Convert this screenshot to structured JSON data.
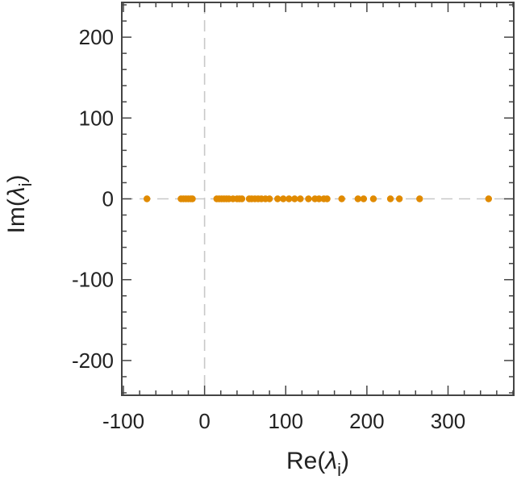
{
  "chart_data": {
    "type": "scatter",
    "title": "",
    "xlabel": {
      "main": "Re(",
      "symbol": "λ",
      "sub": "i",
      "close": ")"
    },
    "ylabel": {
      "main": "Im(",
      "symbol": "λ",
      "sub": "i",
      "close": ")"
    },
    "xlim": [
      -102,
      381
    ],
    "ylim": [
      -243,
      243
    ],
    "x_ticks": [
      -100,
      0,
      100,
      200,
      300
    ],
    "y_ticks": [
      -200,
      -100,
      0,
      100,
      200
    ],
    "x_tick_labels": [
      "-100",
      "0",
      "100",
      "200",
      "300"
    ],
    "y_tick_labels": [
      "-200",
      "-100",
      "0",
      "100",
      "200"
    ],
    "grid": false,
    "reference_lines": {
      "x_zero_dashed": true,
      "y_zero_dashed": true,
      "color": "#c8c8c8"
    },
    "series": [
      {
        "color": "#e08a00",
        "points": [
          {
            "x": -71,
            "y": 0
          },
          {
            "x": -29,
            "y": 0
          },
          {
            "x": -26,
            "y": 0
          },
          {
            "x": -23,
            "y": 0
          },
          {
            "x": -20,
            "y": 0
          },
          {
            "x": -17,
            "y": 0
          },
          {
            "x": -15,
            "y": 0
          },
          {
            "x": 15,
            "y": 0
          },
          {
            "x": 18,
            "y": 0
          },
          {
            "x": 21,
            "y": 0
          },
          {
            "x": 24,
            "y": 0
          },
          {
            "x": 27,
            "y": 0
          },
          {
            "x": 30,
            "y": 0
          },
          {
            "x": 35,
            "y": 0
          },
          {
            "x": 40,
            "y": 0
          },
          {
            "x": 43,
            "y": 0
          },
          {
            "x": 46,
            "y": 0
          },
          {
            "x": 55,
            "y": 0
          },
          {
            "x": 58,
            "y": 0
          },
          {
            "x": 62,
            "y": 0
          },
          {
            "x": 66,
            "y": 0
          },
          {
            "x": 70,
            "y": 0
          },
          {
            "x": 75,
            "y": 0
          },
          {
            "x": 80,
            "y": 0
          },
          {
            "x": 90,
            "y": 0
          },
          {
            "x": 97,
            "y": 0
          },
          {
            "x": 104,
            "y": 0
          },
          {
            "x": 111,
            "y": 0
          },
          {
            "x": 118,
            "y": 0
          },
          {
            "x": 128,
            "y": 0
          },
          {
            "x": 136,
            "y": 0
          },
          {
            "x": 141,
            "y": 0
          },
          {
            "x": 147,
            "y": 0
          },
          {
            "x": 151,
            "y": 0
          },
          {
            "x": 169,
            "y": 0
          },
          {
            "x": 189,
            "y": 0
          },
          {
            "x": 196,
            "y": 0
          },
          {
            "x": 208,
            "y": 0
          },
          {
            "x": 229,
            "y": 0
          },
          {
            "x": 240,
            "y": 0
          },
          {
            "x": 265,
            "y": 0
          },
          {
            "x": 350,
            "y": 0
          }
        ]
      }
    ]
  }
}
